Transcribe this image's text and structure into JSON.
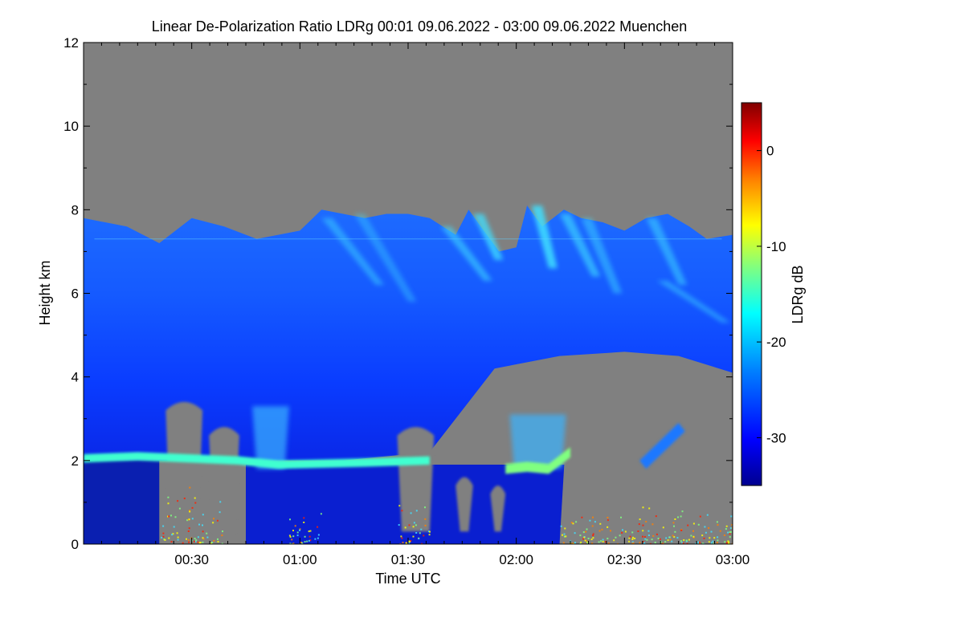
{
  "chart_data": {
    "type": "heatmap",
    "title": "Linear De-Polarization Ratio LDRg   00:01 09.06.2022 - 03:00 09.06.2022 Muenchen",
    "xlabel": "Time UTC",
    "ylabel": "Height km",
    "x_range_hours": [
      0.0,
      3.0
    ],
    "x_ticks": [
      {
        "label": "00:30",
        "value": 0.5
      },
      {
        "label": "01:00",
        "value": 1.0
      },
      {
        "label": "01:30",
        "value": 1.5
      },
      {
        "label": "02:00",
        "value": 2.0
      },
      {
        "label": "02:30",
        "value": 2.5
      },
      {
        "label": "03:00",
        "value": 3.0
      }
    ],
    "ylim": [
      0,
      12
    ],
    "y_ticks": [
      {
        "label": "0",
        "value": 0
      },
      {
        "label": "2",
        "value": 2
      },
      {
        "label": "4",
        "value": 4
      },
      {
        "label": "6",
        "value": 6
      },
      {
        "label": "8",
        "value": 8
      },
      {
        "label": "10",
        "value": 10
      },
      {
        "label": "12",
        "value": 12
      }
    ],
    "colorbar": {
      "label": "LDRg dB",
      "range": [
        -35,
        5
      ],
      "ticks": [
        {
          "label": "0",
          "value": 0
        },
        {
          "label": "-10",
          "value": -10
        },
        {
          "label": "-20",
          "value": -20
        },
        {
          "label": "-30",
          "value": -30
        }
      ],
      "colormap": [
        "#00008f",
        "#0000ff",
        "#0080ff",
        "#00ffff",
        "#80ff80",
        "#ffff00",
        "#ff8000",
        "#ff0000",
        "#800000"
      ]
    },
    "background_color": "#808080",
    "cloud_top_km": [
      {
        "t": 0.0,
        "h": 7.8
      },
      {
        "t": 0.1,
        "h": 7.7
      },
      {
        "t": 0.2,
        "h": 7.6
      },
      {
        "t": 0.35,
        "h": 7.2
      },
      {
        "t": 0.5,
        "h": 7.8
      },
      {
        "t": 0.65,
        "h": 7.6
      },
      {
        "t": 0.8,
        "h": 7.3
      },
      {
        "t": 0.9,
        "h": 7.4
      },
      {
        "t": 1.0,
        "h": 7.5
      },
      {
        "t": 1.1,
        "h": 8.0
      },
      {
        "t": 1.2,
        "h": 7.9
      },
      {
        "t": 1.3,
        "h": 7.8
      },
      {
        "t": 1.4,
        "h": 7.9
      },
      {
        "t": 1.5,
        "h": 7.9
      },
      {
        "t": 1.6,
        "h": 7.8
      },
      {
        "t": 1.72,
        "h": 7.4
      },
      {
        "t": 1.78,
        "h": 8.0
      },
      {
        "t": 1.85,
        "h": 7.5
      },
      {
        "t": 1.92,
        "h": 7.0
      },
      {
        "t": 2.0,
        "h": 7.1
      },
      {
        "t": 2.05,
        "h": 8.1
      },
      {
        "t": 2.12,
        "h": 7.6
      },
      {
        "t": 2.22,
        "h": 8.0
      },
      {
        "t": 2.3,
        "h": 7.8
      },
      {
        "t": 2.4,
        "h": 7.7
      },
      {
        "t": 2.5,
        "h": 7.5
      },
      {
        "t": 2.6,
        "h": 7.8
      },
      {
        "t": 2.7,
        "h": 7.9
      },
      {
        "t": 2.8,
        "h": 7.6
      },
      {
        "t": 2.88,
        "h": 7.3
      },
      {
        "t": 3.0,
        "h": 7.4
      }
    ],
    "cloud_base_km": [
      {
        "t": 0.0,
        "h": 2.0
      },
      {
        "t": 0.3,
        "h": 2.0
      },
      {
        "t": 0.7,
        "h": 2.0
      },
      {
        "t": 1.2,
        "h": 2.0
      },
      {
        "t": 1.6,
        "h": 2.2
      },
      {
        "t": 1.9,
        "h": 4.2
      },
      {
        "t": 2.2,
        "h": 4.5
      },
      {
        "t": 2.5,
        "h": 4.6
      },
      {
        "t": 2.75,
        "h": 4.5
      },
      {
        "t": 3.0,
        "h": 4.1
      }
    ],
    "water_layer": [
      {
        "t": 0.0,
        "h": 2.05
      },
      {
        "t": 0.25,
        "h": 2.1
      },
      {
        "t": 0.72,
        "h": 2.0
      },
      {
        "t": 0.9,
        "h": 1.9
      },
      {
        "t": 1.3,
        "h": 1.95
      },
      {
        "t": 1.6,
        "h": 2.0
      }
    ],
    "water_layer_2": [
      {
        "t": 1.95,
        "h": 1.8
      },
      {
        "t": 2.05,
        "h": 1.85
      },
      {
        "t": 2.15,
        "h": 1.8
      },
      {
        "t": 2.25,
        "h": 2.2
      }
    ]
  }
}
